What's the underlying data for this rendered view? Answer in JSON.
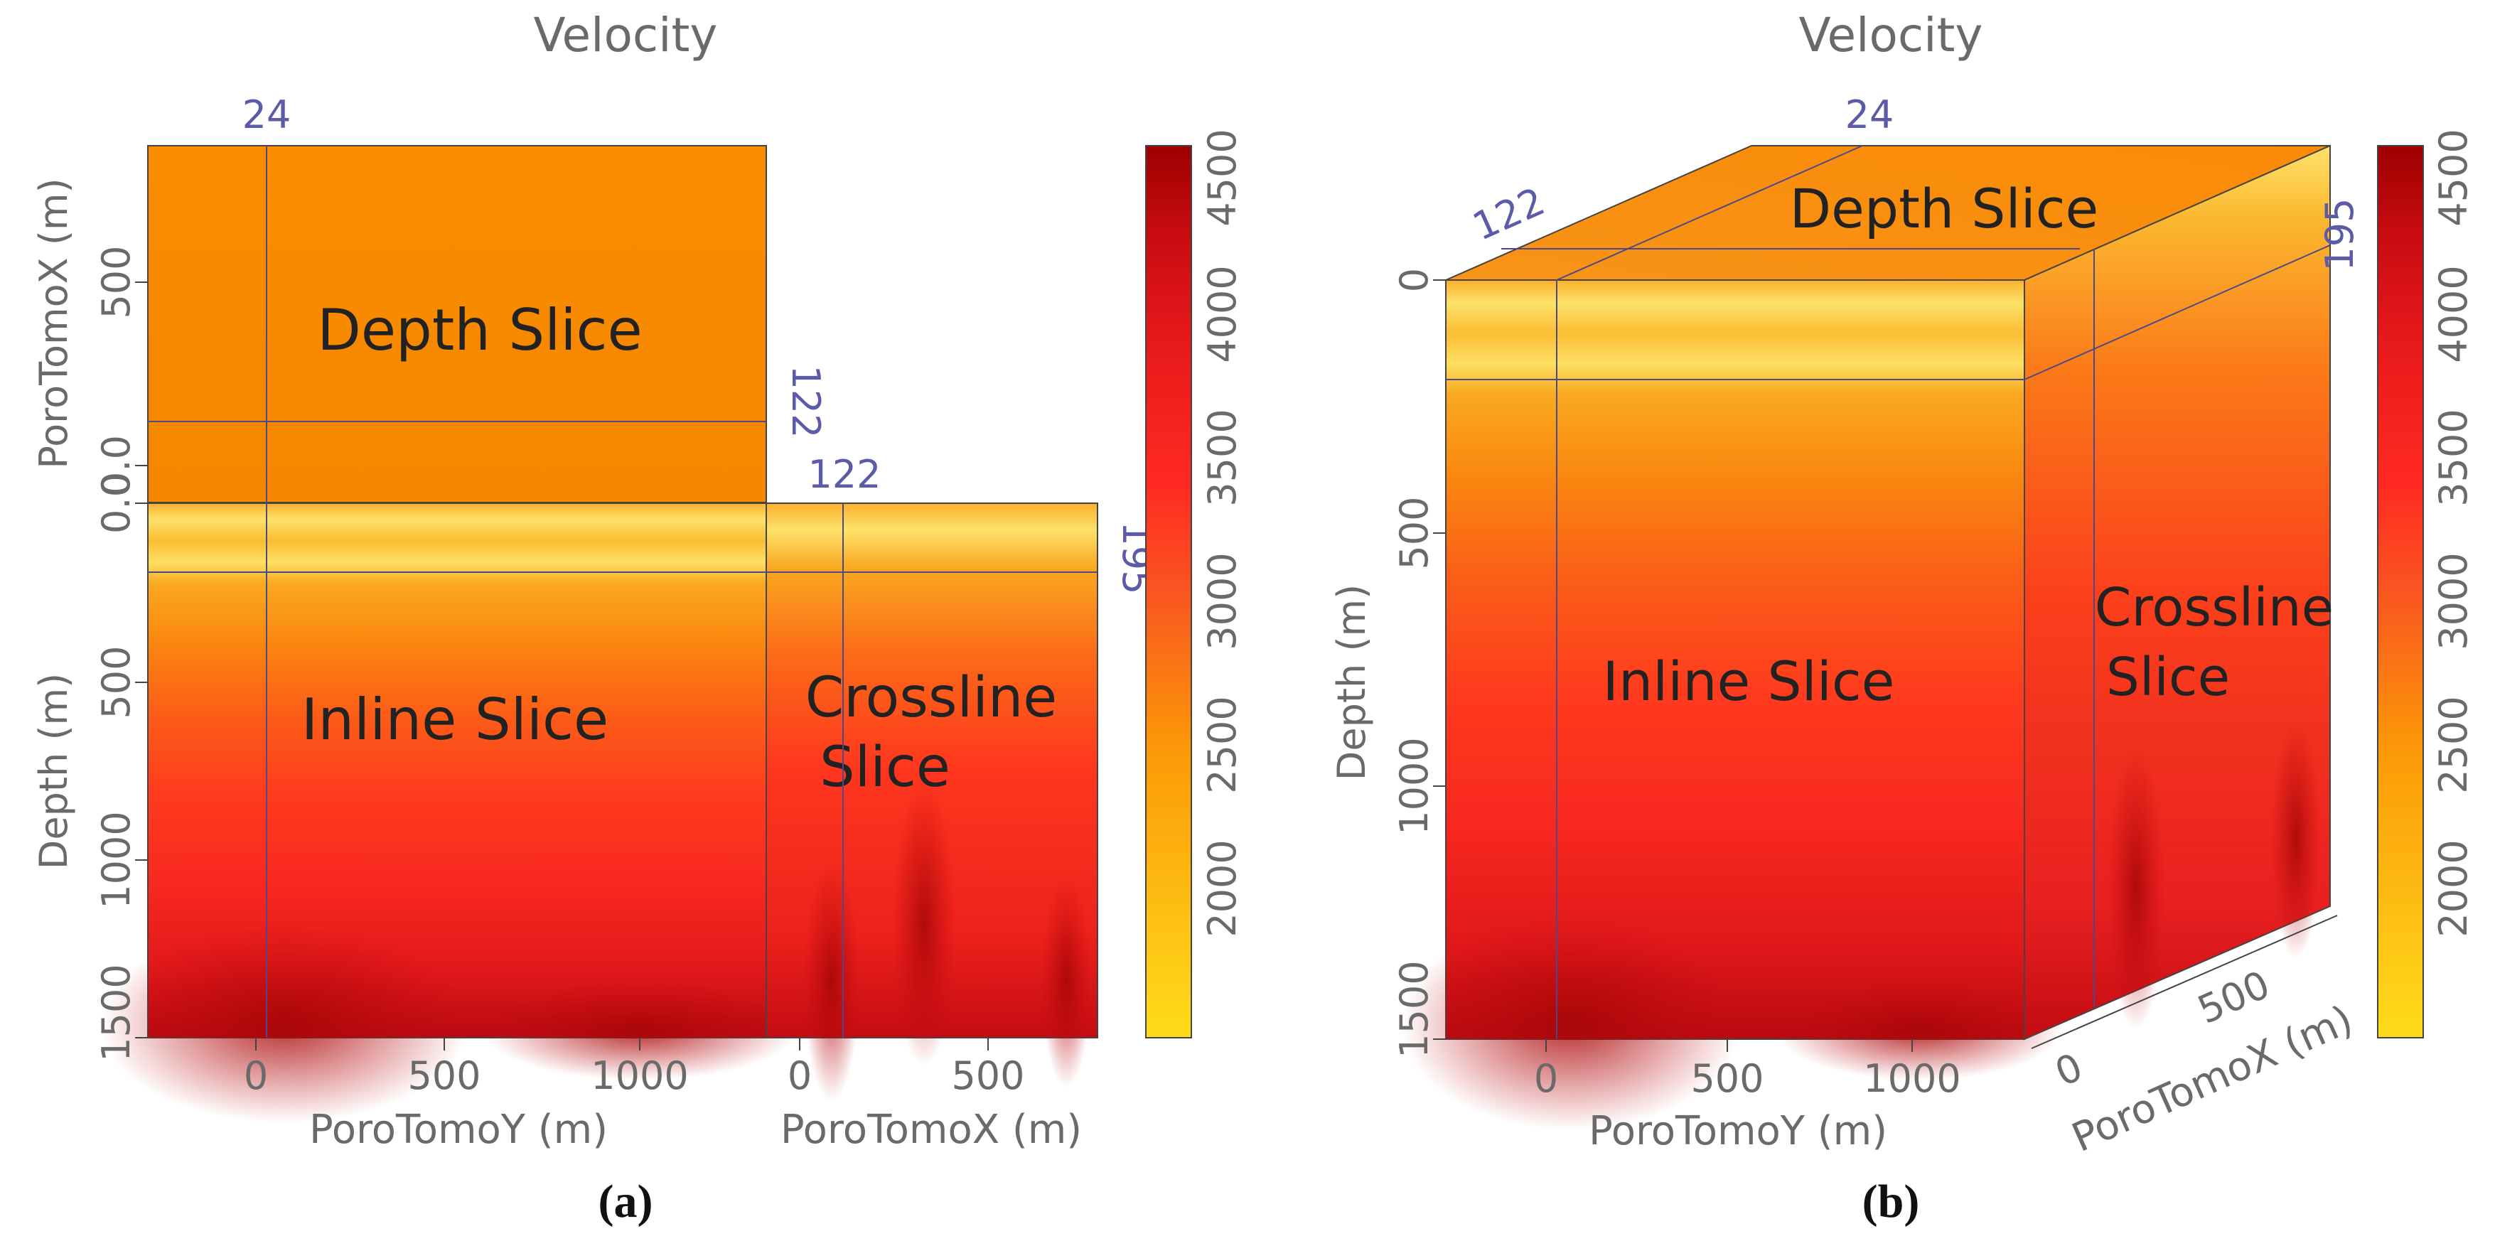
{
  "colors": {
    "colormap": [
      "#fedc1a",
      "#fc9a08",
      "#f95d1f",
      "#ff2a22",
      "#e8191b",
      "#c80c12",
      "#9f0000"
    ],
    "shallow_band": "#fbc235",
    "axis_text": "#6a6a6a",
    "index_label": "#5b5ba8",
    "slice_label": "#222222",
    "frame": "#444444"
  },
  "panels": [
    {
      "id": "a",
      "caption": "(a)",
      "title": "Velocity",
      "depth_slice_label": "Depth Slice",
      "inline_slice_label": "Inline Slice",
      "crossline_slice_label": [
        "Crossline",
        "Slice"
      ],
      "index_labels": {
        "inline": "24",
        "crossline_top": "122",
        "crossline_side": "122",
        "depth": "195"
      },
      "x_axis_label_inline": "PoroTomoY (m)",
      "x_axis_label_crossline": "PoroTomoX (m)",
      "y_axis_label_depth": "Depth (m)",
      "y_axis_label_top": "PoroTomoX (m)",
      "ticks_y_inline": [
        "0",
        "500",
        "1000",
        "1500"
      ],
      "ticks_x_crossline": [
        "0",
        "500"
      ],
      "ticks_depth": [
        "0.0",
        "500",
        "1000",
        "1500"
      ],
      "ticks_top": [
        "0.0",
        "500"
      ],
      "colorbar_ticks": [
        "2000",
        "2500",
        "3000",
        "3500",
        "4000",
        "4500"
      ]
    },
    {
      "id": "b",
      "caption": "(b)",
      "title": "Velocity",
      "depth_slice_label": "Depth Slice",
      "inline_slice_label": "Inline Slice",
      "crossline_slice_label": [
        "Crossline",
        "Slice"
      ],
      "index_labels": {
        "inline": "24",
        "crossline_top": "122",
        "depth": "195"
      },
      "x_axis_label_inline": "PoroTomoY (m)",
      "x_axis_label_crossline": "PoroTomoX (m)",
      "y_axis_label_depth": "Depth (m)",
      "ticks_y_inline": [
        "0",
        "500",
        "1000"
      ],
      "ticks_x_crossline": [
        "0",
        "500"
      ],
      "ticks_depth": [
        "0",
        "500",
        "1000",
        "1500"
      ],
      "colorbar_ticks": [
        "2000",
        "2500",
        "3000",
        "3500",
        "4000",
        "4500"
      ]
    }
  ],
  "chart_data": [
    {
      "type": "heatmap",
      "title": "Velocity",
      "panel": "(a)",
      "view": "orthogonal slices",
      "xlabel": "PoroTomoY (m)",
      "xlabel_secondary": "PoroTomoX (m)",
      "ylabel": "Depth (m)",
      "ylabel_secondary": "PoroTomoX (m)",
      "slices": {
        "depth_slice_index": 195,
        "inline_slice_index": 24,
        "crossline_slice_index": 122
      },
      "inline_x_range": [
        -300,
        1300
      ],
      "crossline_x_range": [
        -100,
        800
      ],
      "depth_range": [
        0,
        1500
      ],
      "top_x_range": [
        -100,
        950
      ],
      "colorbar": {
        "range": [
          1500,
          4600
        ],
        "ticks": [
          2000,
          2500,
          3000,
          3500,
          4000,
          4500
        ]
      }
    },
    {
      "type": "heatmap",
      "title": "Velocity",
      "panel": "(b)",
      "view": "3D cube",
      "xlabel": "PoroTomoY (m)",
      "xlabel_secondary": "PoroTomoX (m)",
      "ylabel": "Depth (m)",
      "slices": {
        "depth_slice_index": 195,
        "inline_slice_index": 24,
        "crossline_slice_index": 122
      },
      "depth_range": [
        0,
        1500
      ],
      "colorbar": {
        "range": [
          1500,
          4600
        ],
        "ticks": [
          2000,
          2500,
          3000,
          3500,
          4000,
          4500
        ]
      }
    }
  ]
}
